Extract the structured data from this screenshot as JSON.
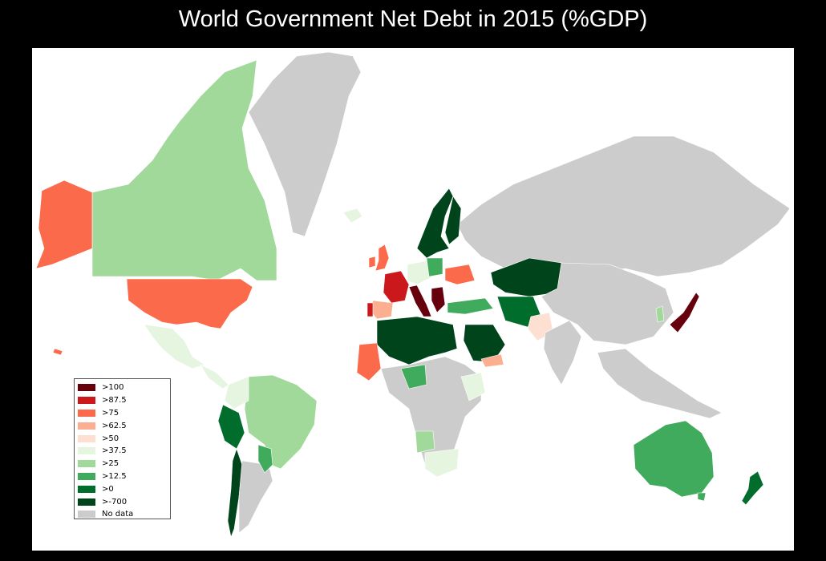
{
  "title": "World Government Net Debt in 2015 (%GDP)",
  "colors": {
    "background": "#000000",
    "ocean": "#ffffff",
    "no_data": "#cccccc"
  },
  "legend": [
    {
      "label": ">100",
      "color": "#67000d"
    },
    {
      "label": ">87.5",
      "color": "#cb181d"
    },
    {
      "label": ">75",
      "color": "#fb6a4a"
    },
    {
      "label": ">62.5",
      "color": "#fcae91"
    },
    {
      "label": ">50",
      "color": "#fee0d2"
    },
    {
      "label": ">37.5",
      "color": "#e5f5e0"
    },
    {
      "label": ">25",
      "color": "#a1d99b"
    },
    {
      "label": ">12.5",
      "color": "#41ab5d"
    },
    {
      "label": ">0",
      "color": "#006d2c"
    },
    {
      "label": ">-700",
      "color": "#00441b"
    },
    {
      "label": "No data",
      "color": "#cccccc"
    }
  ]
}
